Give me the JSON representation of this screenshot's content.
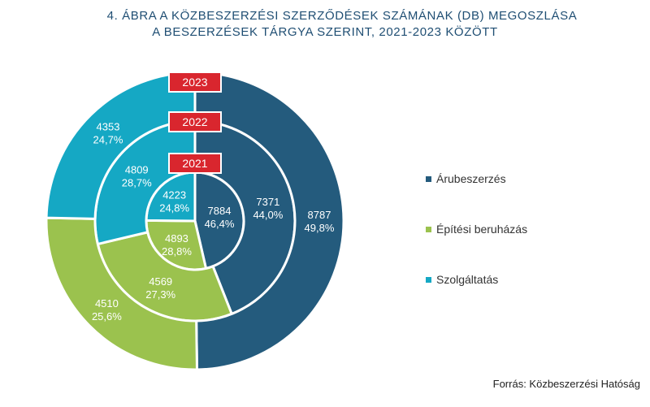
{
  "title": {
    "line1": "4. ÁBRA   A KÖZBESZERZÉSI SZERZŐDÉSEK SZÁMÁNAK (DB) MEGOSZLÁSA",
    "line2": "A BESZERZÉSEK TÁRGYA SZERINT, 2021-2023 KÖZÖTT"
  },
  "colors": {
    "arubeszerzes": "#245b7d",
    "epitesi": "#9bc24e",
    "szolgaltatas": "#15a8c4",
    "year_tag": "#d9262e"
  },
  "legend": [
    {
      "label": "Árubeszerzés",
      "color": "#245b7d"
    },
    {
      "label": "Építési beruházás",
      "color": "#9bc24e"
    },
    {
      "label": "Szolgáltatás",
      "color": "#15a8c4"
    }
  ],
  "source": "Forrás: Közbeszerzési Hatóság",
  "chart_data": {
    "type": "pie",
    "subtype": "nested-donut",
    "categories": [
      "Árubeszerzés",
      "Építési beruházás",
      "Szolgáltatás"
    ],
    "rings": [
      {
        "year": "2021",
        "values": [
          7884,
          4893,
          4223
        ],
        "labels": [
          "46,4%",
          "28,8%",
          "24,8%"
        ]
      },
      {
        "year": "2022",
        "values": [
          7371,
          4569,
          4809
        ],
        "labels": [
          "44,0%",
          "27,3%",
          "28,7%"
        ]
      },
      {
        "year": "2023",
        "values": [
          8787,
          4510,
          4353
        ],
        "labels": [
          "49,8%",
          "25,6%",
          "24,7%"
        ]
      }
    ],
    "legend_position": "right"
  }
}
